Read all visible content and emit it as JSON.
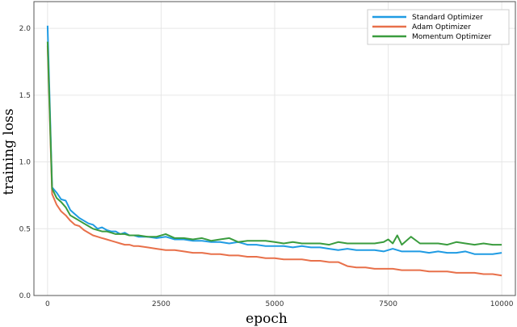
{
  "chart_data": {
    "type": "line",
    "title": "",
    "xlabel": "epoch",
    "ylabel": "training loss",
    "xlim": [
      -300,
      10300
    ],
    "ylim": [
      0,
      2.2
    ],
    "xticks": [
      0,
      2500,
      5000,
      7500,
      10000
    ],
    "xtick_labels": [
      "0",
      "2500",
      "5000",
      "7500",
      "10000"
    ],
    "yticks": [
      0.0,
      0.5,
      1.0,
      1.5,
      2.0
    ],
    "ytick_labels": [
      "0.0",
      "0.5",
      "1.0",
      "1.5",
      "2.0"
    ],
    "grid": true,
    "legend_position": "top-right",
    "series": [
      {
        "name": "Standard Optimizer",
        "color": "#1f9be3",
        "x": [
          0,
          100,
          200,
          300,
          400,
          500,
          600,
          700,
          800,
          900,
          1000,
          1100,
          1200,
          1300,
          1400,
          1500,
          1600,
          1700,
          1800,
          1900,
          2000,
          2200,
          2400,
          2600,
          2800,
          3000,
          3200,
          3400,
          3600,
          3800,
          4000,
          4200,
          4400,
          4600,
          4800,
          5000,
          5200,
          5400,
          5600,
          5800,
          6000,
          6200,
          6400,
          6600,
          6800,
          7000,
          7200,
          7400,
          7600,
          7800,
          8000,
          8200,
          8400,
          8600,
          8800,
          9000,
          9200,
          9400,
          9600,
          9800,
          10000
        ],
        "y": [
          2.02,
          0.81,
          0.77,
          0.72,
          0.71,
          0.64,
          0.61,
          0.58,
          0.56,
          0.54,
          0.53,
          0.5,
          0.51,
          0.49,
          0.48,
          0.48,
          0.46,
          0.47,
          0.45,
          0.45,
          0.44,
          0.44,
          0.43,
          0.44,
          0.42,
          0.42,
          0.41,
          0.41,
          0.4,
          0.4,
          0.39,
          0.4,
          0.38,
          0.38,
          0.37,
          0.37,
          0.37,
          0.36,
          0.37,
          0.36,
          0.36,
          0.35,
          0.34,
          0.35,
          0.34,
          0.34,
          0.34,
          0.33,
          0.35,
          0.33,
          0.33,
          0.33,
          0.32,
          0.33,
          0.32,
          0.32,
          0.33,
          0.31,
          0.31,
          0.31,
          0.32
        ]
      },
      {
        "name": "Adam Optimizer",
        "color": "#e8704a",
        "x": [
          0,
          100,
          200,
          300,
          400,
          500,
          600,
          700,
          800,
          900,
          1000,
          1100,
          1200,
          1300,
          1400,
          1500,
          1600,
          1700,
          1800,
          1900,
          2000,
          2200,
          2400,
          2600,
          2800,
          3000,
          3200,
          3400,
          3600,
          3800,
          4000,
          4200,
          4400,
          4600,
          4800,
          5000,
          5200,
          5400,
          5600,
          5800,
          6000,
          6200,
          6400,
          6600,
          6800,
          7000,
          7200,
          7400,
          7600,
          7800,
          8000,
          8200,
          8400,
          8600,
          8800,
          9000,
          9200,
          9400,
          9600,
          9800,
          10000
        ],
        "y": [
          1.87,
          0.76,
          0.68,
          0.63,
          0.6,
          0.56,
          0.53,
          0.52,
          0.49,
          0.47,
          0.45,
          0.44,
          0.43,
          0.42,
          0.41,
          0.4,
          0.39,
          0.38,
          0.38,
          0.37,
          0.37,
          0.36,
          0.35,
          0.34,
          0.34,
          0.33,
          0.32,
          0.32,
          0.31,
          0.31,
          0.3,
          0.3,
          0.29,
          0.29,
          0.28,
          0.28,
          0.27,
          0.27,
          0.27,
          0.26,
          0.26,
          0.25,
          0.25,
          0.22,
          0.21,
          0.21,
          0.2,
          0.2,
          0.2,
          0.19,
          0.19,
          0.19,
          0.18,
          0.18,
          0.18,
          0.17,
          0.17,
          0.17,
          0.16,
          0.16,
          0.15
        ]
      },
      {
        "name": "Momentum Optimizer",
        "color": "#3a9c3e",
        "x": [
          0,
          100,
          200,
          300,
          400,
          500,
          600,
          700,
          800,
          900,
          1000,
          1100,
          1200,
          1300,
          1400,
          1500,
          1600,
          1700,
          1800,
          1900,
          2000,
          2200,
          2400,
          2600,
          2800,
          3000,
          3200,
          3400,
          3600,
          3800,
          4000,
          4200,
          4400,
          4600,
          4800,
          5000,
          5200,
          5400,
          5600,
          5800,
          6000,
          6200,
          6400,
          6600,
          6800,
          7000,
          7200,
          7400,
          7500,
          7600,
          7700,
          7800,
          8000,
          8200,
          8400,
          8600,
          8800,
          9000,
          9200,
          9400,
          9600,
          9800,
          10000
        ],
        "y": [
          1.9,
          0.8,
          0.73,
          0.7,
          0.66,
          0.6,
          0.58,
          0.56,
          0.54,
          0.52,
          0.5,
          0.49,
          0.48,
          0.48,
          0.47,
          0.46,
          0.46,
          0.46,
          0.45,
          0.45,
          0.45,
          0.44,
          0.44,
          0.46,
          0.43,
          0.43,
          0.42,
          0.43,
          0.41,
          0.42,
          0.43,
          0.4,
          0.41,
          0.41,
          0.41,
          0.4,
          0.39,
          0.4,
          0.39,
          0.39,
          0.39,
          0.38,
          0.4,
          0.39,
          0.39,
          0.39,
          0.39,
          0.4,
          0.42,
          0.39,
          0.45,
          0.38,
          0.44,
          0.39,
          0.39,
          0.39,
          0.38,
          0.4,
          0.39,
          0.38,
          0.39,
          0.38,
          0.38
        ]
      }
    ]
  }
}
